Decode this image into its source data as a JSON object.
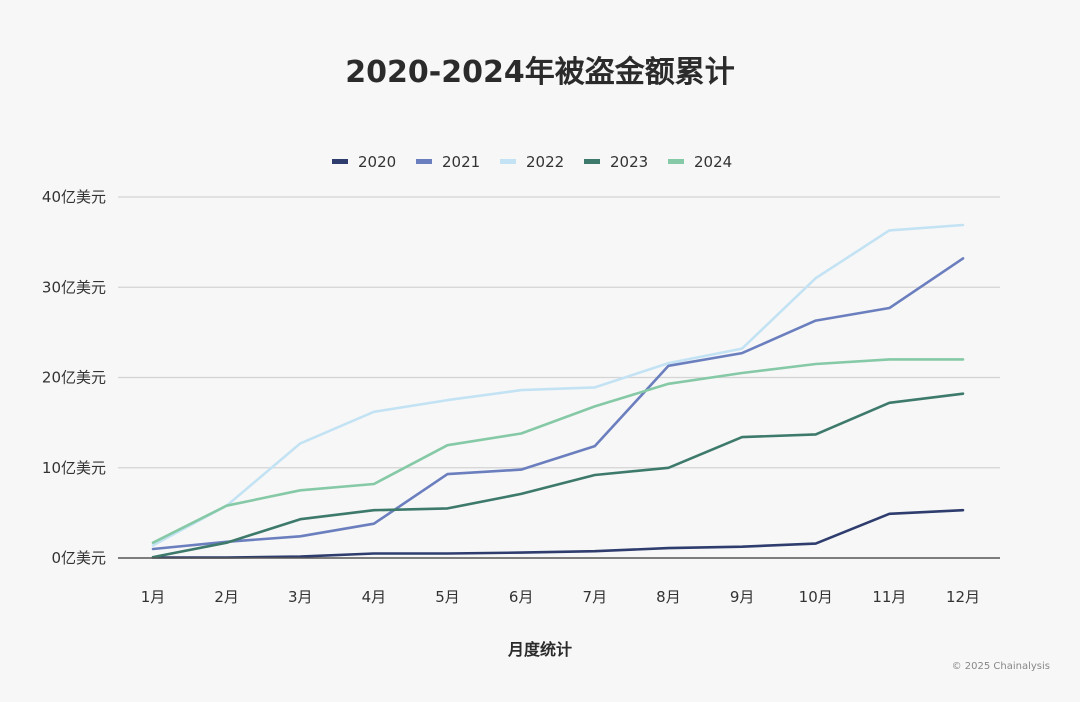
{
  "chart_data": {
    "type": "line",
    "title": "2020-2024年被盗金额累计",
    "xlabel": "月度统计",
    "ylabel": "",
    "categories": [
      "1月",
      "2月",
      "3月",
      "4月",
      "5月",
      "6月",
      "7月",
      "8月",
      "9月",
      "10月",
      "11月",
      "12月"
    ],
    "y_ticks": [
      0,
      10,
      20,
      30,
      40
    ],
    "y_tick_labels": [
      "0亿美元",
      "10亿美元",
      "20亿美元",
      "30亿美元",
      "40亿美元"
    ],
    "ylim": [
      0,
      40
    ],
    "grid": true,
    "legend_position": "top",
    "series": [
      {
        "name": "2020",
        "color": "#2e3d6e",
        "values": [
          0.05,
          0.05,
          0.15,
          0.5,
          0.5,
          0.6,
          0.75,
          1.1,
          1.25,
          1.6,
          4.9,
          5.3
        ]
      },
      {
        "name": "2021",
        "color": "#6b7fbf",
        "values": [
          1.0,
          1.8,
          2.4,
          3.8,
          9.3,
          9.8,
          12.4,
          21.3,
          22.7,
          26.3,
          27.7,
          33.2
        ]
      },
      {
        "name": "2022",
        "color": "#c3e3f4",
        "values": [
          1.4,
          5.8,
          12.7,
          16.2,
          17.5,
          18.6,
          18.9,
          21.6,
          23.2,
          31.0,
          36.3,
          36.9
        ]
      },
      {
        "name": "2023",
        "color": "#3e7a6b",
        "values": [
          0.1,
          1.7,
          4.3,
          5.3,
          5.5,
          7.1,
          9.2,
          10.0,
          13.4,
          13.7,
          17.2,
          18.2
        ]
      },
      {
        "name": "2024",
        "color": "#86c9a6",
        "values": [
          1.7,
          5.8,
          7.5,
          8.2,
          12.5,
          13.8,
          16.8,
          19.3,
          20.5,
          21.5,
          22.0,
          22.0
        ]
      }
    ]
  },
  "copyright": "© 2025 Chainalysis"
}
